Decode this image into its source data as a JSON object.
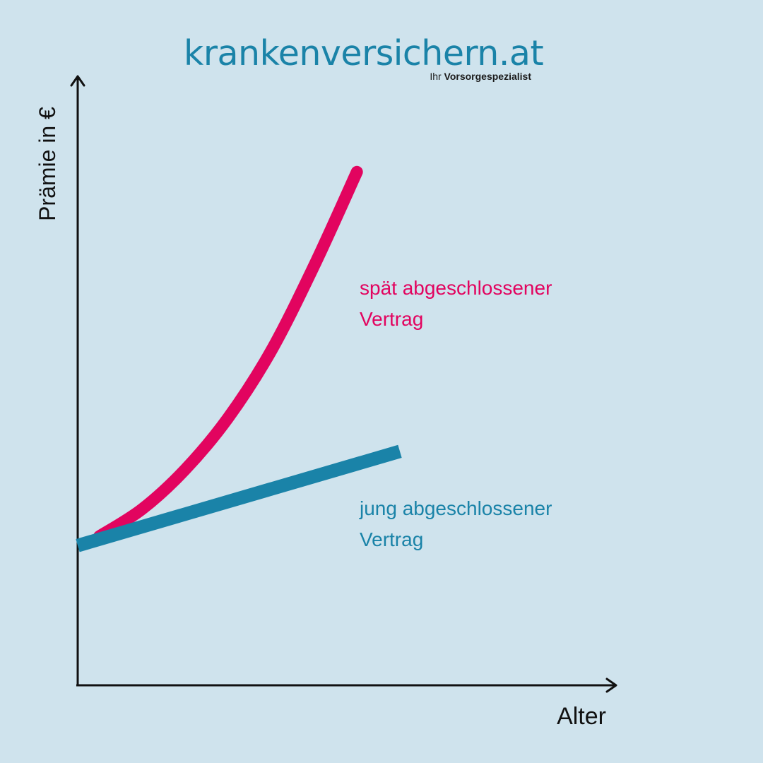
{
  "brand": {
    "name": "krankenversichern.at",
    "tagline_prefix": "Ihr",
    "tagline_bold": "Vorsorgespezialist"
  },
  "chart_data": {
    "type": "line",
    "xlabel": "Alter",
    "ylabel": "Prämie in €",
    "xlim": [
      0,
      100
    ],
    "ylim": [
      0,
      100
    ],
    "grid": false,
    "series": [
      {
        "name": "spät abgeschlossener Vertrag",
        "label_lines": [
          "spät abgeschlossener",
          "Vertrag"
        ],
        "color": "#e2045f",
        "kind": "exponential",
        "x": [
          4,
          12,
          20,
          28,
          36,
          44,
          52
        ],
        "y": [
          24.5,
          29.0,
          35.5,
          44.0,
          55.0,
          69.0,
          84.5
        ]
      },
      {
        "name": "jung abgeschlossener Vertrag",
        "label_lines": [
          "jung abgeschlossener",
          "Vertrag"
        ],
        "color": "#1a83a8",
        "kind": "linear",
        "x": [
          0,
          60
        ],
        "y": [
          23,
          38.5
        ]
      }
    ]
  }
}
